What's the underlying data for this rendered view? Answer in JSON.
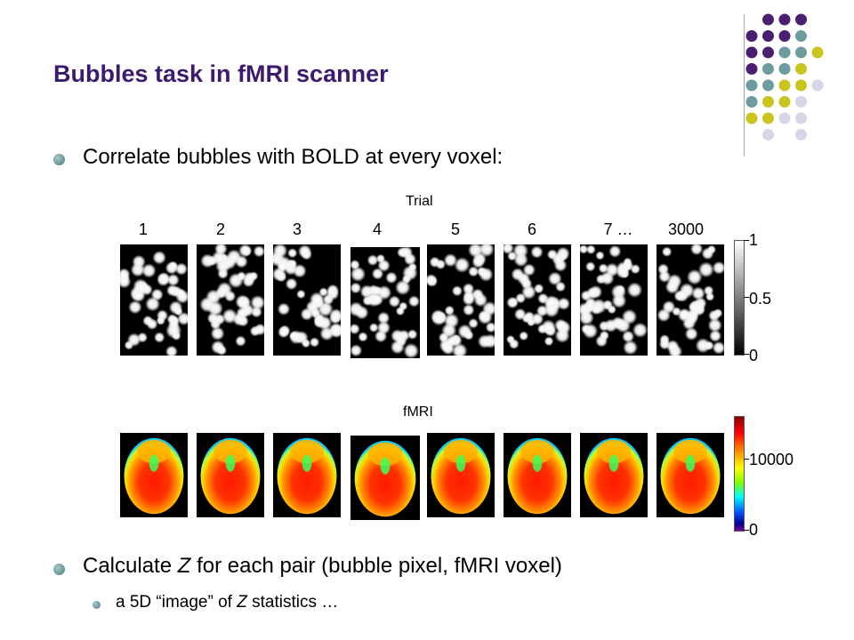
{
  "slide": {
    "title": "Bubbles task in fMRI scanner",
    "bullets": [
      "Correlate bubbles with BOLD at every voxel:",
      "Calculate Z for each pair (bubble pixel, fMRI voxel)"
    ],
    "sub_bullet_parts": [
      "a 5D “image” of ",
      "Z",
      " statistics …"
    ],
    "bullet2_parts": [
      "Calculate ",
      "Z",
      " for each pair (bubble pixel, fMRI voxel)"
    ]
  },
  "figure": {
    "trial_label": "Trial",
    "trial_numbers": [
      "1",
      "2",
      "3",
      "4",
      "5",
      "6",
      "7 …",
      "3000"
    ],
    "fmri_label": "fMRI",
    "bubbles_colorbar": {
      "ticks": [
        "1",
        "0.5",
        "0"
      ],
      "colormap": "gray"
    },
    "fmri_colorbar": {
      "ticks": [
        "10000",
        "0"
      ],
      "colormap": "jet"
    }
  },
  "theme": {
    "title_color": "#3d1a6e",
    "bullet_color": "#6e9c9e",
    "decor_colors": [
      "#4b1f6f",
      "#6e9c9e",
      "#c9c41e",
      "#d6d6e8"
    ]
  },
  "icons": {
    "bullet": "round-bullet-icon",
    "decor": "dot-grid-decoration"
  }
}
